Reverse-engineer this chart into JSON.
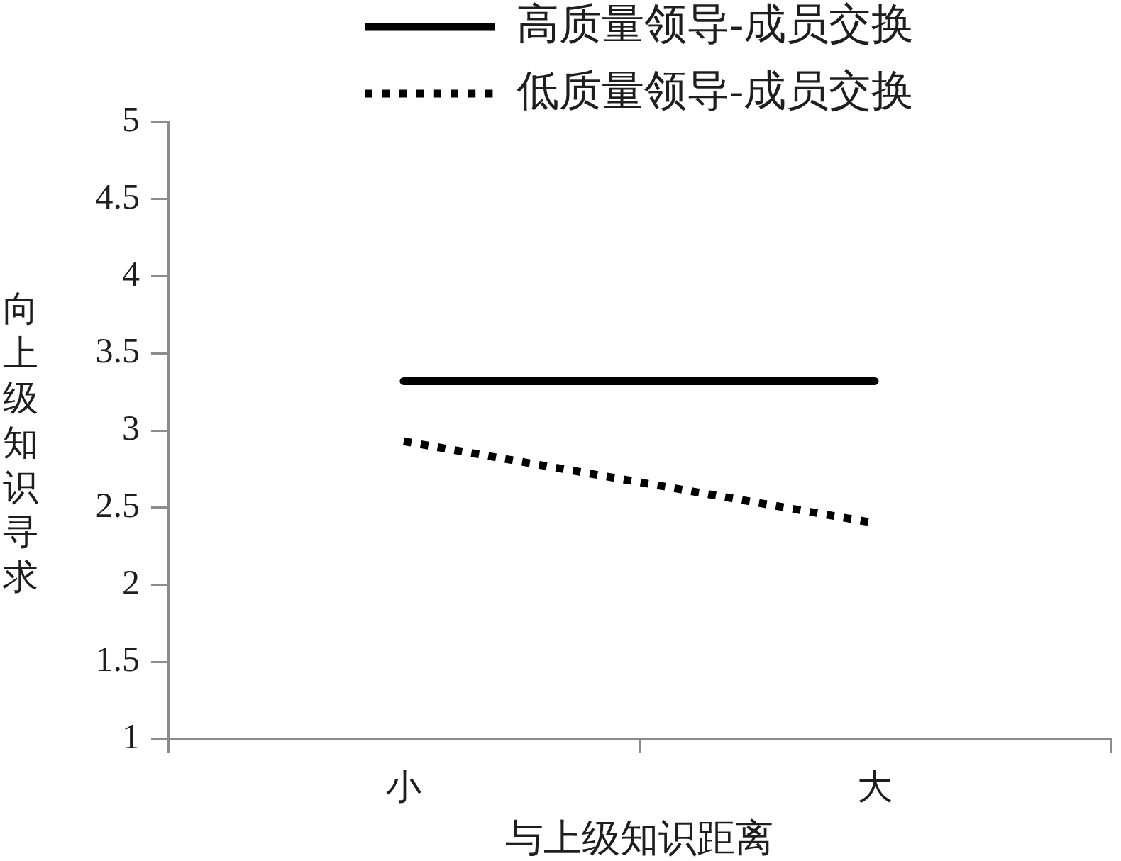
{
  "chart_data": {
    "type": "line",
    "xlabel": "与上级知识距离",
    "ylabel": "向上级知识寻求",
    "categories": [
      "小",
      "大"
    ],
    "series": [
      {
        "name": "高质量领导-成员交换",
        "color": "#000000",
        "line_style": "solid",
        "values": [
          3.32,
          3.32
        ]
      },
      {
        "name": "低质量领导-成员交换",
        "color": "#000000",
        "line_style": "dotted",
        "values": [
          2.93,
          2.4
        ]
      }
    ],
    "ylim": [
      1,
      5
    ],
    "yticks": [
      1,
      1.5,
      2,
      2.5,
      3,
      3.5,
      4,
      4.5,
      5
    ],
    "grid": false,
    "legend": "top",
    "marker": "none"
  }
}
